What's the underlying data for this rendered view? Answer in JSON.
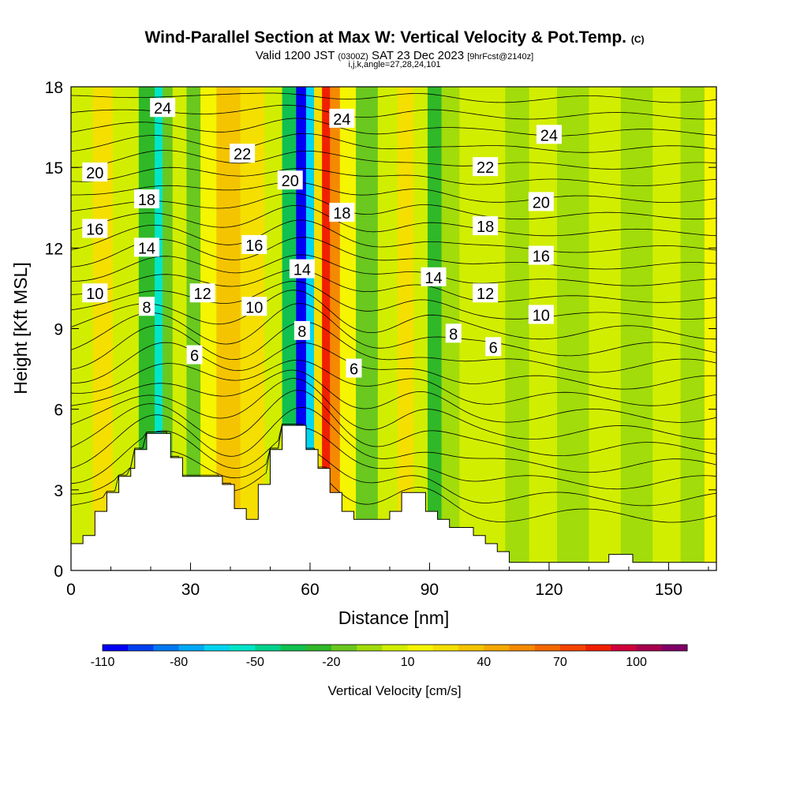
{
  "title": {
    "main": "Wind-Parallel Section at Max W: Vertical Velocity & Pot.Temp.",
    "copyright": "(C)",
    "valid_prefix": "Valid 1200 JST",
    "valid_utc": "(0300Z)",
    "valid_date": "SAT 23 Dec 2023",
    "forecast_info": "[9hrFcst@2140z]",
    "indices": "i,j,k,angle=27,28,24,101"
  },
  "chart_data": {
    "type": "heatmap",
    "xlabel": "Distance [nm]",
    "ylabel": "Height [Kft MSL]",
    "xlim": [
      0,
      162
    ],
    "ylim": [
      0,
      18
    ],
    "x_ticks": [
      {
        "value": 0,
        "label": "0"
      },
      {
        "value": 30,
        "label": "30"
      },
      {
        "value": 60,
        "label": "60"
      },
      {
        "value": 90,
        "label": "90"
      },
      {
        "value": 120,
        "label": "120"
      },
      {
        "value": 150,
        "label": "150"
      }
    ],
    "y_ticks": [
      {
        "value": 0,
        "label": "0"
      },
      {
        "value": 3,
        "label": "3"
      },
      {
        "value": 6,
        "label": "6"
      },
      {
        "value": 9,
        "label": "9"
      },
      {
        "value": 12,
        "label": "12"
      },
      {
        "value": 15,
        "label": "15"
      },
      {
        "value": 18,
        "label": "18"
      }
    ],
    "colorbar": {
      "title": "Vertical Velocity [cm/s]",
      "min": -110,
      "max": 120,
      "step": 10,
      "colors": [
        "#0000f5",
        "#0040f0",
        "#0078f0",
        "#00a8f5",
        "#00d5f0",
        "#00e5c8",
        "#00d28c",
        "#10c050",
        "#30b828",
        "#6ac81e",
        "#a2dc0a",
        "#d2ee00",
        "#f5f500",
        "#f5df00",
        "#f5c400",
        "#f5a800",
        "#f58a00",
        "#f56800",
        "#f54400",
        "#f02000",
        "#d0003a",
        "#a8004e",
        "#800068"
      ],
      "labels": [
        {
          "value": -110,
          "label": "-110"
        },
        {
          "value": -80,
          "label": "-80"
        },
        {
          "value": -50,
          "label": "-50"
        },
        {
          "value": -20,
          "label": "-20"
        },
        {
          "value": 10,
          "label": "10"
        },
        {
          "value": 40,
          "label": "40"
        },
        {
          "value": 70,
          "label": "70"
        },
        {
          "value": 100,
          "label": "100"
        }
      ]
    },
    "velocity_bands": [
      {
        "x": 0,
        "w": 4
      },
      {
        "x": 4,
        "w": 6
      },
      {
        "x": 7,
        "w": 22
      },
      {
        "x": 14,
        "w": 5
      },
      {
        "x": 20,
        "w": -30
      },
      {
        "x": 22,
        "w": -55
      },
      {
        "x": 24,
        "w": -20
      },
      {
        "x": 27,
        "w": 8
      },
      {
        "x": 31,
        "w": -15
      },
      {
        "x": 34,
        "w": 10
      },
      {
        "x": 39,
        "w": 35
      },
      {
        "x": 46,
        "w": 25
      },
      {
        "x": 51,
        "w": 0
      },
      {
        "x": 55,
        "w": -40
      },
      {
        "x": 58,
        "w": -105
      },
      {
        "x": 60,
        "w": -70
      },
      {
        "x": 62,
        "w": 20
      },
      {
        "x": 64,
        "w": 80
      },
      {
        "x": 66,
        "w": 50
      },
      {
        "x": 69,
        "w": 10
      },
      {
        "x": 74,
        "w": -15
      },
      {
        "x": 80,
        "w": 5
      },
      {
        "x": 84,
        "w": 25
      },
      {
        "x": 88,
        "w": 5
      },
      {
        "x": 91,
        "w": -25
      },
      {
        "x": 95,
        "w": -5
      },
      {
        "x": 100,
        "w": 5
      },
      {
        "x": 106,
        "w": 5
      },
      {
        "x": 112,
        "w": -10
      },
      {
        "x": 118,
        "w": 2
      },
      {
        "x": 126,
        "w": -2
      },
      {
        "x": 134,
        "w": 5
      },
      {
        "x": 142,
        "w": -5
      },
      {
        "x": 150,
        "w": 8
      },
      {
        "x": 156,
        "w": -3
      },
      {
        "x": 162,
        "w": 10
      }
    ],
    "terrain": [
      {
        "x": 0,
        "h": 1.0
      },
      {
        "x": 3,
        "h": 1.3
      },
      {
        "x": 6,
        "h": 2.2
      },
      {
        "x": 9,
        "h": 2.9
      },
      {
        "x": 12,
        "h": 3.5
      },
      {
        "x": 15,
        "h": 3.8
      },
      {
        "x": 16,
        "h": 4.5
      },
      {
        "x": 19,
        "h": 5.1
      },
      {
        "x": 25,
        "h": 4.2
      },
      {
        "x": 28,
        "h": 3.5
      },
      {
        "x": 38,
        "h": 3.2
      },
      {
        "x": 41,
        "h": 2.3
      },
      {
        "x": 44,
        "h": 1.9
      },
      {
        "x": 47,
        "h": 3.2
      },
      {
        "x": 50,
        "h": 4.5
      },
      {
        "x": 53,
        "h": 5.4
      },
      {
        "x": 59,
        "h": 4.5
      },
      {
        "x": 62,
        "h": 3.8
      },
      {
        "x": 65,
        "h": 2.9
      },
      {
        "x": 68,
        "h": 2.2
      },
      {
        "x": 71,
        "h": 1.9
      },
      {
        "x": 80,
        "h": 2.2
      },
      {
        "x": 83,
        "h": 2.9
      },
      {
        "x": 89,
        "h": 2.2
      },
      {
        "x": 92,
        "h": 1.9
      },
      {
        "x": 95,
        "h": 1.6
      },
      {
        "x": 101,
        "h": 1.3
      },
      {
        "x": 104,
        "h": 1.0
      },
      {
        "x": 107,
        "h": 0.7
      },
      {
        "x": 110,
        "h": 0.3
      },
      {
        "x": 135,
        "h": 0.6
      },
      {
        "x": 141,
        "h": 0.3
      },
      {
        "x": 162,
        "h": 0.3
      }
    ],
    "isentrope_levels": [
      2,
      3,
      4,
      5,
      6,
      7,
      8,
      9,
      10,
      11,
      12,
      13,
      14,
      15,
      16,
      17,
      18,
      19,
      20,
      21,
      22,
      23,
      24,
      25,
      26,
      27,
      28
    ],
    "isentrope_labels": [
      {
        "text": "24",
        "x": 23,
        "y": 17.2
      },
      {
        "text": "24",
        "x": 68,
        "y": 16.8
      },
      {
        "text": "24",
        "x": 120,
        "y": 16.2
      },
      {
        "text": "22",
        "x": 43,
        "y": 15.5
      },
      {
        "text": "22",
        "x": 104,
        "y": 15.0
      },
      {
        "text": "20",
        "x": 6,
        "y": 14.8
      },
      {
        "text": "20",
        "x": 55,
        "y": 14.5
      },
      {
        "text": "20",
        "x": 118,
        "y": 13.7
      },
      {
        "text": "18",
        "x": 19,
        "y": 13.8
      },
      {
        "text": "18",
        "x": 68,
        "y": 13.3
      },
      {
        "text": "18",
        "x": 104,
        "y": 12.8
      },
      {
        "text": "16",
        "x": 6,
        "y": 12.7
      },
      {
        "text": "16",
        "x": 46,
        "y": 12.1
      },
      {
        "text": "16",
        "x": 118,
        "y": 11.7
      },
      {
        "text": "14",
        "x": 19,
        "y": 12.0
      },
      {
        "text": "14",
        "x": 58,
        "y": 11.2
      },
      {
        "text": "14",
        "x": 91,
        "y": 10.9
      },
      {
        "text": "12",
        "x": 33,
        "y": 10.3
      },
      {
        "text": "12",
        "x": 104,
        "y": 10.3
      },
      {
        "text": "10",
        "x": 6,
        "y": 10.3
      },
      {
        "text": "10",
        "x": 46,
        "y": 9.8
      },
      {
        "text": "10",
        "x": 118,
        "y": 9.5
      },
      {
        "text": "8",
        "x": 19,
        "y": 9.8
      },
      {
        "text": "8",
        "x": 58,
        "y": 8.9
      },
      {
        "text": "8",
        "x": 96,
        "y": 8.8
      },
      {
        "text": "6",
        "x": 31,
        "y": 8.0
      },
      {
        "text": "6",
        "x": 71,
        "y": 7.5
      },
      {
        "text": "6",
        "x": 106,
        "y": 8.3
      }
    ]
  }
}
